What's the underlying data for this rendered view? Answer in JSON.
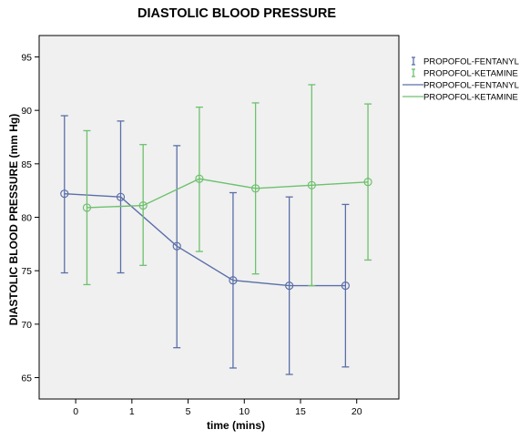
{
  "chart_data": {
    "type": "line",
    "title": "DIASTOLIC BLOOD PRESSURE",
    "xlabel": "time (mins)",
    "ylabel": "DIASTOLIC BLOOD PRESSURE (mm Hg)",
    "categories": [
      "0",
      "1",
      "5",
      "10",
      "15",
      "20"
    ],
    "ylim": [
      63,
      97
    ],
    "yticks": [
      65,
      70,
      75,
      80,
      85,
      90,
      95
    ],
    "grid": false,
    "legend_position": "top-right",
    "plot_background": "#f0f0f0",
    "series": [
      {
        "name": "PROPOFOL-FENTANYL",
        "color": "#5b6fa8",
        "x": [
          -0.4,
          0.6,
          1.6,
          2.6,
          3.6,
          4.6
        ],
        "values": [
          82.2,
          81.9,
          77.3,
          74.1,
          73.6,
          73.6
        ],
        "error_low": [
          74.8,
          74.8,
          67.8,
          65.9,
          65.3,
          66.0
        ],
        "error_high": [
          89.5,
          89.0,
          86.7,
          82.3,
          81.9,
          81.2
        ]
      },
      {
        "name": "PROPOFOL-KETAMINE",
        "color": "#6ec06e",
        "x": [
          0.0,
          1.0,
          2.0,
          3.0,
          4.0,
          5.0
        ],
        "values": [
          80.9,
          81.1,
          83.6,
          82.7,
          83.0,
          83.3
        ],
        "error_low": [
          73.7,
          75.5,
          76.8,
          74.7,
          73.6,
          76.0
        ],
        "error_high": [
          88.1,
          86.8,
          90.3,
          90.7,
          92.4,
          90.6
        ]
      }
    ],
    "legend": [
      {
        "kind": "errorbar",
        "label": "PROPOFOL-FENTANYL",
        "series": 0
      },
      {
        "kind": "errorbar",
        "label": "PROPOFOL-KETAMINE",
        "series": 1
      },
      {
        "kind": "line",
        "label": "PROPOFOL-FENTANYL",
        "series": 0
      },
      {
        "kind": "line",
        "label": "PROPOFOL-KETAMINE",
        "series": 1
      }
    ]
  }
}
